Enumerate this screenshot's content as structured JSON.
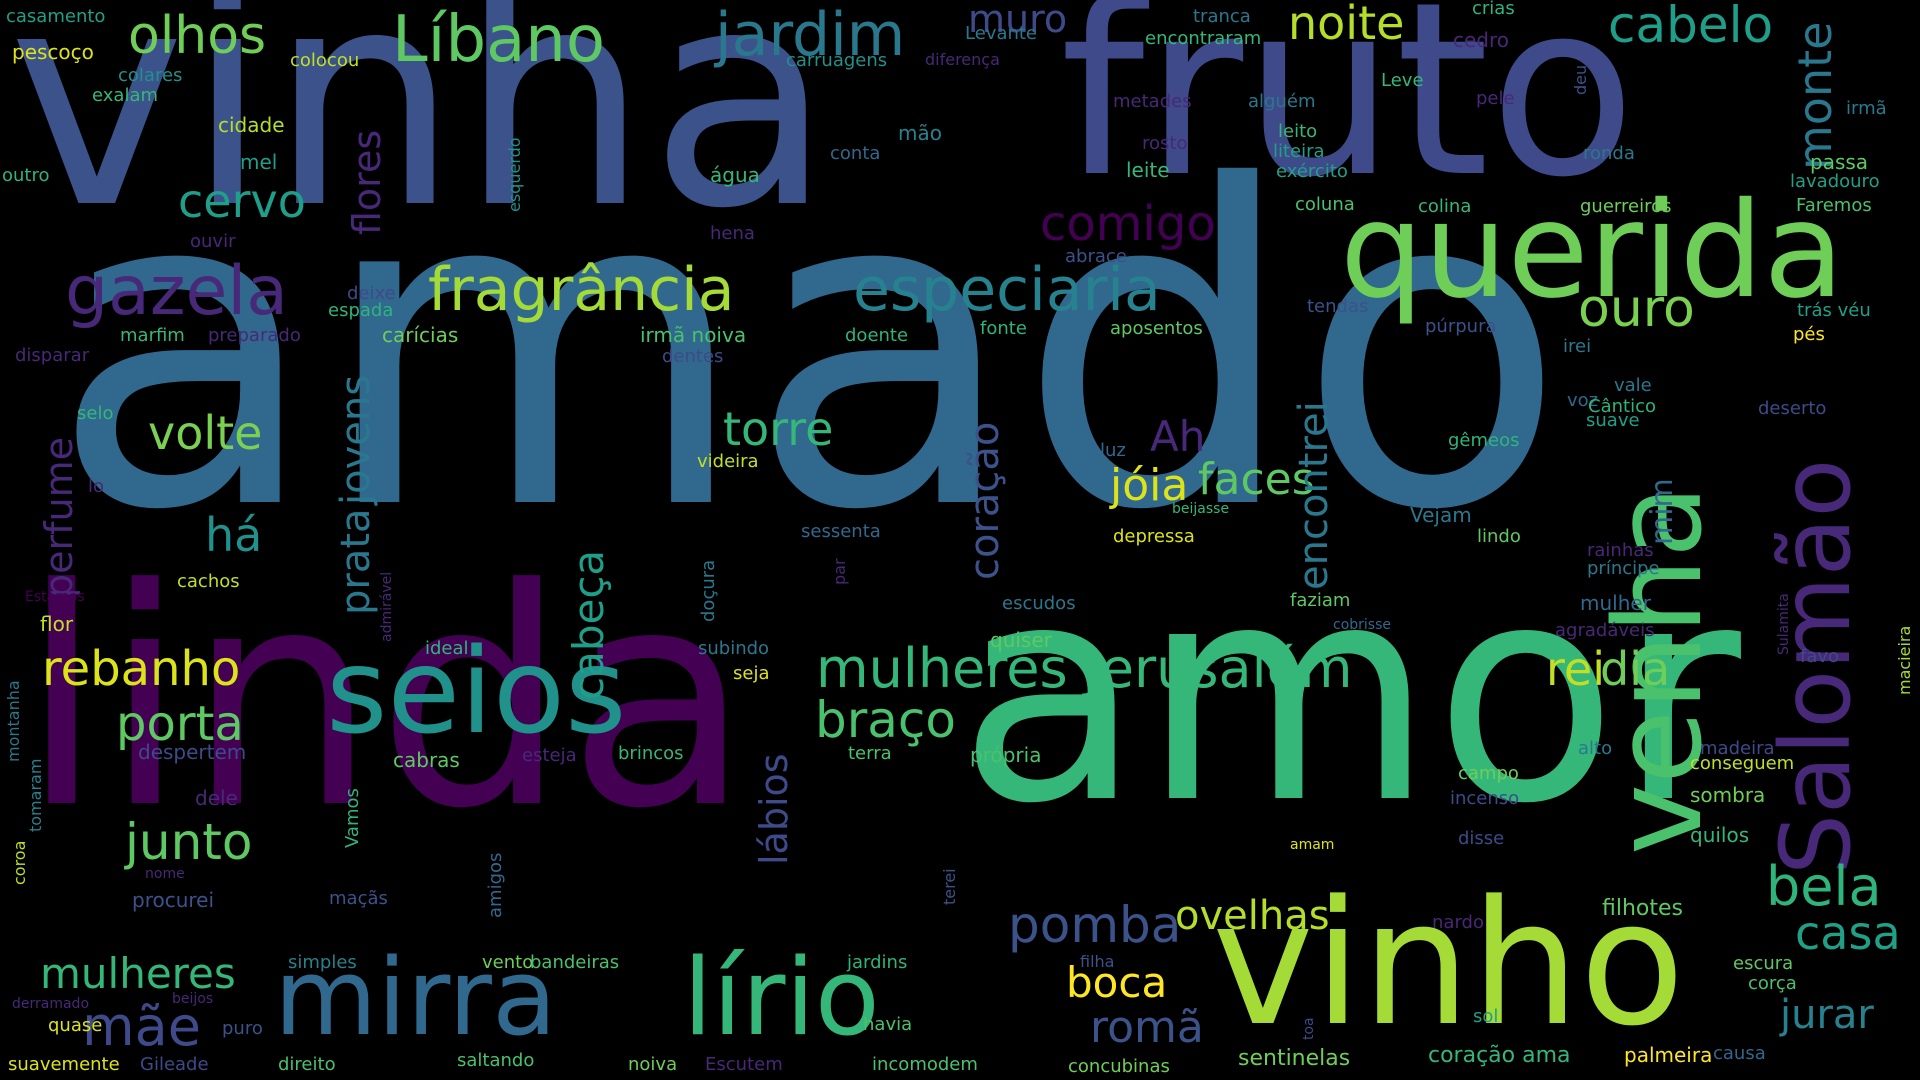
{
  "words": [
    {
      "text": "amado",
      "color": "#31688e"
    },
    {
      "text": "amor",
      "color": "#35b779"
    },
    {
      "text": "linda",
      "color": "#440154"
    },
    {
      "text": "vinha",
      "color": "#3b528b"
    },
    {
      "text": "fruto",
      "color": "#3e4a89"
    },
    {
      "text": "vinho",
      "color": "#a5db36"
    },
    {
      "text": "querida",
      "color": "#6ece58"
    },
    {
      "text": "venha",
      "color": "#4ac16d"
    },
    {
      "text": "Salomão",
      "color": "#482878"
    },
    {
      "text": "seios",
      "color": "#21918c"
    },
    {
      "text": "mirra",
      "color": "#31688e"
    },
    {
      "text": "lírio",
      "color": "#35b779"
    },
    {
      "text": "fragrância",
      "color": "#a5db36"
    },
    {
      "text": "especiaria",
      "color": "#26828e"
    },
    {
      "text": "gazela",
      "color": "#482878"
    },
    {
      "text": "Líbano",
      "color": "#5ec962"
    },
    {
      "text": "jardim",
      "color": "#2a788e"
    },
    {
      "text": "olhos",
      "color": "#6ece58"
    },
    {
      "text": "cabelo",
      "color": "#1f9e89"
    },
    {
      "text": "noite",
      "color": "#b5de2b"
    },
    {
      "text": "muro",
      "color": "#3e4a89"
    },
    {
      "text": "monte",
      "color": "#2a788e"
    },
    {
      "text": "comigo",
      "color": "#440154"
    },
    {
      "text": "cervo",
      "color": "#1f9e89"
    },
    {
      "text": "flores",
      "color": "#482878"
    },
    {
      "text": "ouro",
      "color": "#7ad151"
    },
    {
      "text": "mulheres Jerusalém",
      "color": "#35b779"
    },
    {
      "text": "rei",
      "color": "#c2df23"
    },
    {
      "text": "dia",
      "color": "#6ece58"
    },
    {
      "text": "bela",
      "color": "#2fb47c"
    },
    {
      "text": "casa",
      "color": "#1fa187"
    },
    {
      "text": "jurar",
      "color": "#26828e"
    },
    {
      "text": "pomba",
      "color": "#3b528b"
    },
    {
      "text": "romã",
      "color": "#3b528b"
    },
    {
      "text": "boca",
      "color": "#fde725"
    },
    {
      "text": "ovelhas",
      "color": "#b5de2b"
    },
    {
      "text": "faces",
      "color": "#5ec962"
    },
    {
      "text": "jóia",
      "color": "#dce319"
    },
    {
      "text": "encontrei",
      "color": "#2a788e"
    },
    {
      "text": "Ah",
      "color": "#482878"
    },
    {
      "text": "torre",
      "color": "#35b779"
    },
    {
      "text": "coração",
      "color": "#3b528b"
    },
    {
      "text": "cabeça",
      "color": "#1f9e89"
    },
    {
      "text": "braço",
      "color": "#4ac16d"
    },
    {
      "text": "lábios",
      "color": "#3e4a89"
    },
    {
      "text": "prata",
      "color": "#2a788e"
    },
    {
      "text": "jovens",
      "color": "#2a788e"
    },
    {
      "text": "volte",
      "color": "#7ad151"
    },
    {
      "text": "perfume",
      "color": "#482878"
    },
    {
      "text": "há",
      "color": "#21918c"
    },
    {
      "text": "rebanho",
      "color": "#dce319"
    },
    {
      "text": "porta",
      "color": "#5ec962"
    },
    {
      "text": "junto",
      "color": "#5ec962"
    },
    {
      "text": "mulheres",
      "color": "#35b779"
    },
    {
      "text": "mãe",
      "color": "#3e4a89"
    },
    {
      "text": "mim",
      "color": "#31688e"
    },
    {
      "text": "filhotes",
      "color": "#5ec962"
    },
    {
      "text": "coração ama",
      "color": "#35b779"
    },
    {
      "text": "palmeira",
      "color": "#fde725"
    },
    {
      "text": "sentinelas",
      "color": "#6ece58"
    },
    {
      "text": "casamento",
      "color": "#1fa187"
    },
    {
      "text": "pescoço",
      "color": "#dce319"
    },
    {
      "text": "colares",
      "color": "#21918c"
    },
    {
      "text": "exalam",
      "color": "#35b779"
    },
    {
      "text": "colocou",
      "color": "#c2df23"
    },
    {
      "text": "carruagens",
      "color": "#21918c"
    },
    {
      "text": "diferença",
      "color": "#482878"
    },
    {
      "text": "Levante",
      "color": "#2a788e"
    },
    {
      "text": "tranca",
      "color": "#2a788e"
    },
    {
      "text": "encontraram",
      "color": "#35b779"
    },
    {
      "text": "crias",
      "color": "#2fb47c"
    },
    {
      "text": "cedro",
      "color": "#482878"
    },
    {
      "text": "deu",
      "color": "#3b528b"
    },
    {
      "text": "Leve",
      "color": "#35b779"
    },
    {
      "text": "pele",
      "color": "#482878"
    },
    {
      "text": "irmã",
      "color": "#2a788e"
    },
    {
      "text": "metades",
      "color": "#482878"
    },
    {
      "text": "alguém",
      "color": "#2a788e"
    },
    {
      "text": "leito",
      "color": "#35b779"
    },
    {
      "text": "cidade",
      "color": "#b5de2b"
    },
    {
      "text": "mão",
      "color": "#26828e"
    },
    {
      "text": "rosto",
      "color": "#482878"
    },
    {
      "text": "liteira",
      "color": "#1fa187"
    },
    {
      "text": "exército",
      "color": "#1fa187"
    },
    {
      "text": "ronda",
      "color": "#2a788e"
    },
    {
      "text": "passa",
      "color": "#5ec962"
    },
    {
      "text": "lavadouro",
      "color": "#1fa187"
    },
    {
      "text": "Faremos",
      "color": "#4ac16d"
    },
    {
      "text": "mel",
      "color": "#1f9e89"
    },
    {
      "text": "conta",
      "color": "#31688e"
    },
    {
      "text": "leite",
      "color": "#35b779"
    },
    {
      "text": "outro",
      "color": "#2fb47c"
    },
    {
      "text": "água",
      "color": "#35b779"
    },
    {
      "text": "coluna",
      "color": "#4ac16d"
    },
    {
      "text": "colina",
      "color": "#35b779"
    },
    {
      "text": "guerreiros",
      "color": "#6ece58"
    },
    {
      "text": "esquerdo",
      "color": "#21918c"
    },
    {
      "text": "hena",
      "color": "#482878"
    },
    {
      "text": "ouvir",
      "color": "#482878"
    },
    {
      "text": "abrace",
      "color": "#3b528b"
    },
    {
      "text": "deixe",
      "color": "#3e4a89"
    },
    {
      "text": "espada",
      "color": "#2fb47c"
    },
    {
      "text": "tendas",
      "color": "#3b528b"
    },
    {
      "text": "trás véu",
      "color": "#1fa187"
    },
    {
      "text": "marfim",
      "color": "#35b779"
    },
    {
      "text": "preparado",
      "color": "#482878"
    },
    {
      "text": "carícias",
      "color": "#6ece58"
    },
    {
      "text": "irmã noiva",
      "color": "#4ac16d"
    },
    {
      "text": "doente",
      "color": "#2fb47c"
    },
    {
      "text": "fonte",
      "color": "#2fb47c"
    },
    {
      "text": "aposentos",
      "color": "#5ec962"
    },
    {
      "text": "púrpura",
      "color": "#3b528b"
    },
    {
      "text": "pés",
      "color": "#fde725"
    },
    {
      "text": "disparar",
      "color": "#482878"
    },
    {
      "text": "dentes",
      "color": "#3e4a89"
    },
    {
      "text": "irei",
      "color": "#2a788e"
    },
    {
      "text": "voz",
      "color": "#31688e"
    },
    {
      "text": "vale",
      "color": "#2a788e"
    },
    {
      "text": "Cântico",
      "color": "#2fb47c"
    },
    {
      "text": "suave",
      "color": "#1fa187"
    },
    {
      "text": "deserto",
      "color": "#3e4a89"
    },
    {
      "text": "selo",
      "color": "#35b779"
    },
    {
      "text": "gêmeos",
      "color": "#2fb47c"
    },
    {
      "text": "luz",
      "color": "#31688e"
    },
    {
      "text": "videira",
      "color": "#c2df23"
    },
    {
      "text": "lo",
      "color": "#482878"
    },
    {
      "text": "beijasse",
      "color": "#35b779"
    },
    {
      "text": "Vejam",
      "color": "#2a788e"
    },
    {
      "text": "sessenta",
      "color": "#31688e"
    },
    {
      "text": "depressa",
      "color": "#dce319"
    },
    {
      "text": "lindo",
      "color": "#5ec962"
    },
    {
      "text": "rainhas",
      "color": "#482878"
    },
    {
      "text": "príncipe",
      "color": "#2a788e"
    },
    {
      "text": "cachos",
      "color": "#c2df23"
    },
    {
      "text": "Estamos",
      "color": "#440154"
    },
    {
      "text": "admirável",
      "color": "#482878"
    },
    {
      "text": "doçura",
      "color": "#2a788e"
    },
    {
      "text": "par",
      "color": "#482878"
    },
    {
      "text": "escudos",
      "color": "#2a788e"
    },
    {
      "text": "faziam",
      "color": "#5ec962"
    },
    {
      "text": "mulher",
      "color": "#31688e"
    },
    {
      "text": "Sulamita",
      "color": "#482878"
    },
    {
      "text": "macieira",
      "color": "#a5db36"
    },
    {
      "text": "flor",
      "color": "#c2df23"
    },
    {
      "text": "ideal",
      "color": "#2fb47c"
    },
    {
      "text": "subindo",
      "color": "#2a788e"
    },
    {
      "text": "quiser",
      "color": "#5ec962"
    },
    {
      "text": "cobrisse",
      "color": "#31688e"
    },
    {
      "text": "agradáveis",
      "color": "#482878"
    },
    {
      "text": "favo",
      "color": "#3e4a89"
    },
    {
      "text": "seja",
      "color": "#dce319"
    },
    {
      "text": "montanha",
      "color": "#2a788e"
    },
    {
      "text": "tomaram",
      "color": "#26828e"
    },
    {
      "text": "despertem",
      "color": "#3e4a89"
    },
    {
      "text": "cabras",
      "color": "#5ec962"
    },
    {
      "text": "esteja",
      "color": "#482878"
    },
    {
      "text": "brincos",
      "color": "#35b779"
    },
    {
      "text": "terra",
      "color": "#4ac16d"
    },
    {
      "text": "própria",
      "color": "#4ac16d"
    },
    {
      "text": "alto",
      "color": "#2a788e"
    },
    {
      "text": "madeira",
      "color": "#3e4a89"
    },
    {
      "text": "conseguem",
      "color": "#c2df23"
    },
    {
      "text": "campo",
      "color": "#6ece58"
    },
    {
      "text": "incenso",
      "color": "#3e4a89"
    },
    {
      "text": "sombra",
      "color": "#6ece58"
    },
    {
      "text": "dele",
      "color": "#482878"
    },
    {
      "text": "Vamos",
      "color": "#2fb47c"
    },
    {
      "text": "amigos",
      "color": "#31688e"
    },
    {
      "text": "coroa",
      "color": "#c2df23"
    },
    {
      "text": "nome",
      "color": "#482878"
    },
    {
      "text": "procurei",
      "color": "#3b528b"
    },
    {
      "text": "maçãs",
      "color": "#3b528b"
    },
    {
      "text": "terei",
      "color": "#3b528b"
    },
    {
      "text": "amam",
      "color": "#dce319"
    },
    {
      "text": "disse",
      "color": "#3e4a89"
    },
    {
      "text": "quilos",
      "color": "#35b779"
    },
    {
      "text": "simples",
      "color": "#26828e"
    },
    {
      "text": "vento",
      "color": "#6ece58"
    },
    {
      "text": "bandeiras",
      "color": "#4ac16d"
    },
    {
      "text": "jardins",
      "color": "#2fb47c"
    },
    {
      "text": "filha",
      "color": "#3b528b"
    },
    {
      "text": "nardo",
      "color": "#482878"
    },
    {
      "text": "escura",
      "color": "#5ec962"
    },
    {
      "text": "corça",
      "color": "#4ac16d"
    },
    {
      "text": "derramado",
      "color": "#482878"
    },
    {
      "text": "beijos",
      "color": "#482878"
    },
    {
      "text": "quase",
      "color": "#dce319"
    },
    {
      "text": "puro",
      "color": "#3b528b"
    },
    {
      "text": "havia",
      "color": "#4ac16d"
    },
    {
      "text": "toa",
      "color": "#3e4a89"
    },
    {
      "text": "sol",
      "color": "#1fa187"
    },
    {
      "text": "suavemente",
      "color": "#dce319"
    },
    {
      "text": "Gileade",
      "color": "#3e4a89"
    },
    {
      "text": "direito",
      "color": "#4ac16d"
    },
    {
      "text": "saltando",
      "color": "#4ac16d"
    },
    {
      "text": "noiva",
      "color": "#6ece58"
    },
    {
      "text": "Escutem",
      "color": "#482878"
    },
    {
      "text": "incomodem",
      "color": "#4ac16d"
    },
    {
      "text": "concubinas",
      "color": "#6ece58"
    },
    {
      "text": "causa",
      "color": "#31688e"
    }
  ]
}
